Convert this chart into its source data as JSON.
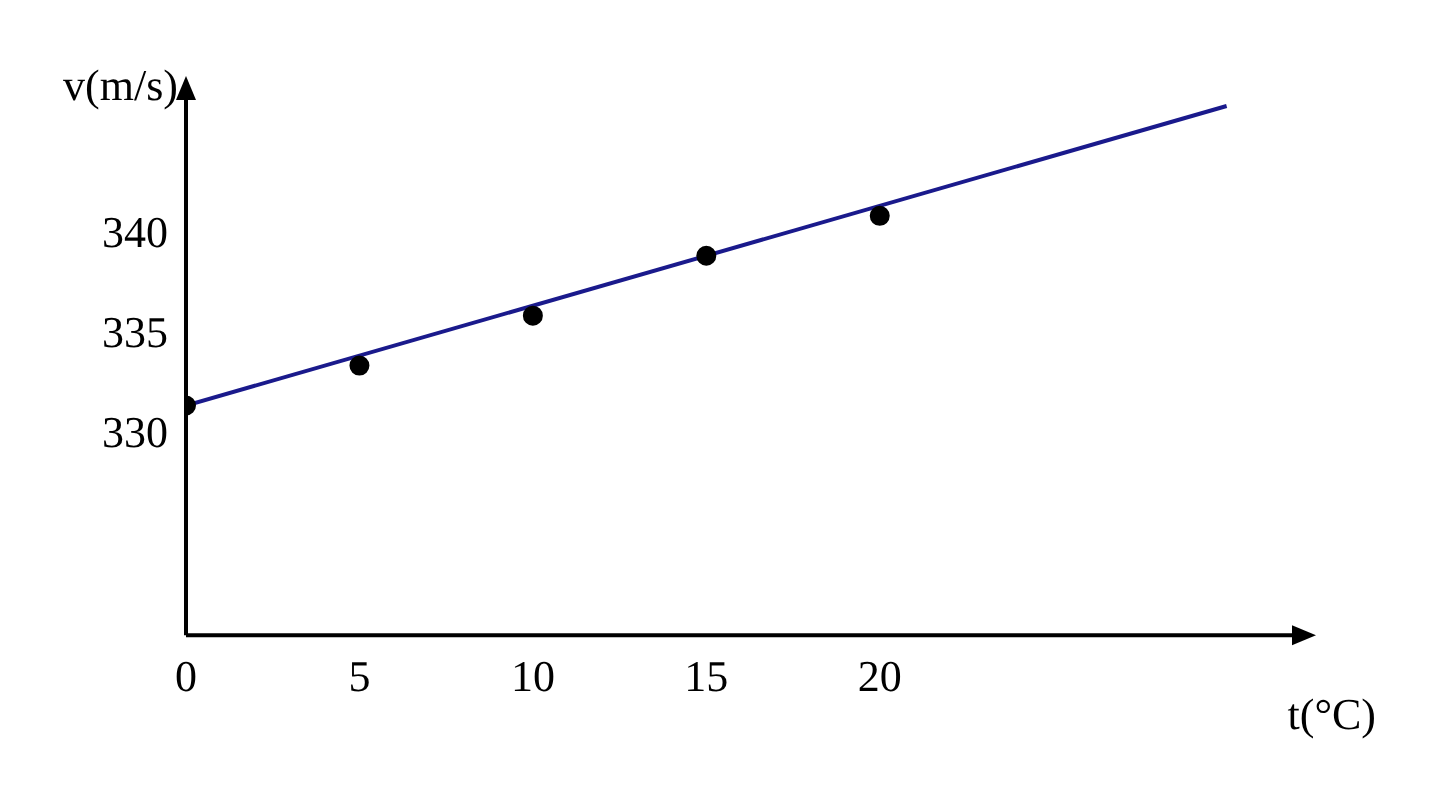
{
  "chart_data": {
    "type": "scatter",
    "xlabel": "t(°C)",
    "ylabel": "v(m/s)",
    "xlim": [
      0,
      32
    ],
    "xticks": [
      0,
      5,
      10,
      15,
      20
    ],
    "ylim": [
      320,
      347
    ],
    "yticks": [
      330,
      335,
      340
    ],
    "grid": false,
    "legend": false,
    "marker": "circle",
    "series": [
      {
        "color": "#000000",
        "x": [
          0,
          5,
          10,
          15,
          20
        ],
        "values": [
          331.5,
          333.5,
          336,
          339,
          341
        ]
      },
      {
        "type": "line",
        "color": "#1a1a8c",
        "x": [
          0,
          30
        ],
        "values": [
          331.5,
          346.5
        ],
        "marker": "none",
        "line_style": "solid"
      }
    ]
  }
}
